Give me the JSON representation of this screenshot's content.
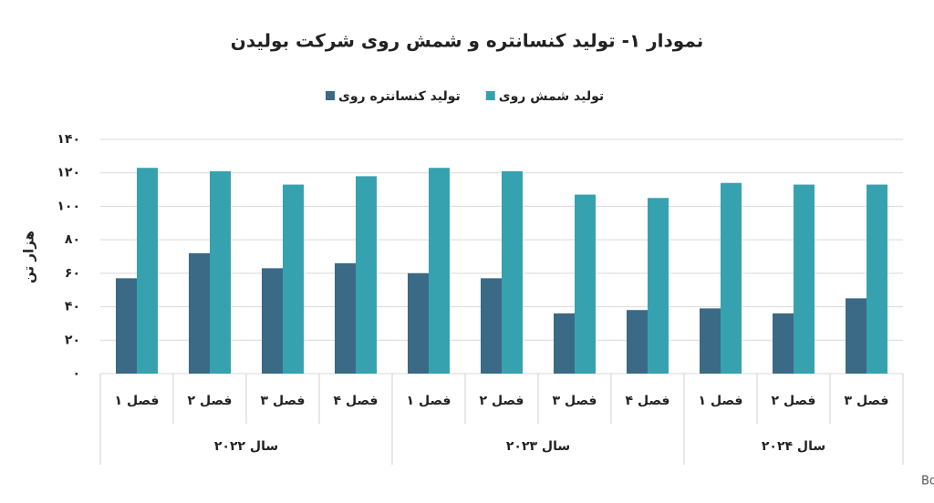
{
  "chart_data": {
    "type": "bar",
    "title": "نمودار ۱- تولید کنسانتره و شمش روی شرکت بولیدن",
    "y_label": "هزار تن",
    "source": "منبع: Boliden",
    "groups": [
      {
        "name": "سال ۲۰۲۲",
        "categories": [
          "فصل ۱",
          "فصل ۲",
          "فصل ۳",
          "فصل ۴"
        ]
      },
      {
        "name": "سال ۲۰۲۳",
        "categories": [
          "فصل ۱",
          "فصل ۲",
          "فصل ۳",
          "فصل ۴"
        ]
      },
      {
        "name": "سال ۲۰۲۴",
        "categories": [
          "فصل ۱",
          "فصل ۲",
          "فصل ۳"
        ]
      }
    ],
    "series": [
      {
        "name": "تولید کنسانتره روی",
        "color": "#3a6a86",
        "values": [
          57,
          72,
          63,
          66,
          60,
          57,
          36,
          38,
          39,
          36,
          45
        ]
      },
      {
        "name": "تولید شمش روی",
        "color": "#36a2b0",
        "values": [
          123,
          121,
          113,
          118,
          123,
          121,
          107,
          105,
          114,
          113,
          113
        ]
      }
    ],
    "ylim": [
      0,
      140
    ],
    "yticks": [
      {
        "value": 0,
        "label": "۰"
      },
      {
        "value": 20,
        "label": "۲۰"
      },
      {
        "value": 40,
        "label": "۴۰"
      },
      {
        "value": 60,
        "label": "۶۰"
      },
      {
        "value": 80,
        "label": "۸۰"
      },
      {
        "value": 100,
        "label": "۱۰۰"
      },
      {
        "value": 120,
        "label": "۱۲۰"
      },
      {
        "value": 140,
        "label": "۱۴۰"
      }
    ],
    "grid": true
  }
}
